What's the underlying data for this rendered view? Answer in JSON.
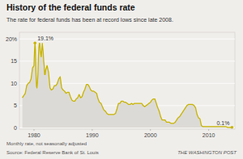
{
  "chart_data": {
    "type": "area",
    "title": "History of the federal funds rate",
    "subtitle": "The rate for federal funds has been at record lows since late 2008.",
    "note": "Monthly rate, not seasonally adjusted",
    "source": "Source: Federal Reserve Bank of St. Louis",
    "credit": "THE WASHINGTON POST",
    "color": "#c8b400",
    "grid": true,
    "xlim": [
      1977.5,
      2014.5
    ],
    "xticks": [
      1980,
      1990,
      2000,
      2010
    ],
    "ylim": [
      -0.3,
      21.5
    ],
    "yticks": [
      0,
      5,
      10,
      15,
      {
        "value": 20,
        "label": "20%"
      }
    ],
    "annotations": [
      {
        "text": "19.1%",
        "x": 1980.17,
        "y": 19.1
      },
      {
        "text": "0.1%",
        "x": 2014.0,
        "y": 0.1
      }
    ],
    "x": [
      1978.0,
      1978.25,
      1978.5,
      1978.75,
      1979.0,
      1979.25,
      1979.5,
      1979.75,
      1980.0,
      1980.08,
      1980.17,
      1980.25,
      1980.33,
      1980.42,
      1980.5,
      1980.58,
      1980.67,
      1980.75,
      1980.83,
      1980.92,
      1981.0,
      1981.08,
      1981.17,
      1981.25,
      1981.33,
      1981.42,
      1981.5,
      1981.58,
      1981.67,
      1981.75,
      1981.83,
      1981.92,
      1982.0,
      1982.25,
      1982.5,
      1982.75,
      1983.0,
      1983.25,
      1983.5,
      1983.75,
      1984.0,
      1984.25,
      1984.5,
      1984.75,
      1985.0,
      1985.25,
      1985.5,
      1985.75,
      1986.0,
      1986.25,
      1986.5,
      1986.75,
      1987.0,
      1987.25,
      1987.5,
      1987.75,
      1988.0,
      1988.25,
      1988.5,
      1988.75,
      1989.0,
      1989.25,
      1989.5,
      1989.75,
      1990.0,
      1990.25,
      1990.5,
      1990.75,
      1991.0,
      1991.25,
      1991.5,
      1991.75,
      1992.0,
      1992.25,
      1992.5,
      1992.75,
      1993.0,
      1993.25,
      1993.5,
      1993.75,
      1994.0,
      1994.25,
      1994.5,
      1994.75,
      1995.0,
      1995.25,
      1995.5,
      1995.75,
      1996.0,
      1996.25,
      1996.5,
      1996.75,
      1997.0,
      1997.25,
      1997.5,
      1997.75,
      1998.0,
      1998.25,
      1998.5,
      1998.75,
      1999.0,
      1999.25,
      1999.5,
      1999.75,
      2000.0,
      2000.25,
      2000.5,
      2000.75,
      2001.0,
      2001.25,
      2001.5,
      2001.75,
      2002.0,
      2002.25,
      2002.5,
      2002.75,
      2003.0,
      2003.25,
      2003.5,
      2003.75,
      2004.0,
      2004.25,
      2004.5,
      2004.75,
      2005.0,
      2005.25,
      2005.5,
      2005.75,
      2006.0,
      2006.25,
      2006.5,
      2006.75,
      2007.0,
      2007.25,
      2007.5,
      2007.75,
      2008.0,
      2008.25,
      2008.5,
      2008.75,
      2009.0,
      2009.25,
      2009.5,
      2009.75,
      2010.0,
      2010.25,
      2010.5,
      2010.75,
      2011.0,
      2011.25,
      2011.5,
      2011.75,
      2012.0,
      2012.25,
      2012.5,
      2012.75,
      2013.0,
      2013.25,
      2013.5,
      2013.75,
      2014.0
    ],
    "values": [
      6.75,
      7.25,
      7.75,
      9.5,
      10.0,
      10.25,
      11.0,
      13.5,
      14.0,
      17.0,
      19.1,
      17.5,
      13.0,
      9.5,
      9.0,
      10.0,
      12.0,
      15.5,
      18.0,
      19.0,
      19.0,
      17.5,
      16.5,
      16.0,
      17.5,
      19.0,
      18.0,
      17.0,
      15.0,
      14.0,
      12.0,
      12.0,
      13.0,
      14.0,
      12.5,
      9.0,
      8.5,
      8.75,
      9.5,
      9.5,
      10.0,
      11.0,
      11.5,
      9.0,
      8.5,
      8.25,
      7.75,
      8.0,
      8.0,
      7.0,
      6.25,
      6.0,
      6.0,
      6.5,
      6.75,
      7.5,
      6.75,
      7.0,
      8.0,
      8.75,
      9.75,
      9.75,
      9.25,
      8.5,
      8.25,
      8.25,
      8.0,
      7.75,
      6.5,
      5.75,
      5.5,
      4.75,
      4.0,
      3.75,
      3.25,
      3.0,
      3.0,
      3.0,
      3.0,
      3.0,
      3.25,
      4.25,
      5.5,
      5.5,
      6.0,
      6.0,
      5.75,
      5.75,
      5.5,
      5.25,
      5.25,
      5.5,
      5.25,
      5.5,
      5.5,
      5.5,
      5.5,
      5.5,
      5.5,
      5.0,
      4.75,
      5.0,
      5.25,
      5.5,
      5.75,
      6.25,
      6.5,
      6.5,
      5.5,
      4.5,
      3.75,
      2.5,
      1.75,
      1.75,
      1.75,
      1.25,
      1.25,
      1.25,
      1.0,
      1.0,
      1.0,
      1.25,
      1.75,
      2.25,
      2.5,
      3.0,
      3.5,
      4.0,
      4.5,
      5.0,
      5.25,
      5.25,
      5.25,
      5.25,
      5.0,
      4.5,
      3.0,
      2.25,
      2.0,
      0.5,
      0.25,
      0.25,
      0.25,
      0.25,
      0.25,
      0.25,
      0.25,
      0.25,
      0.25,
      0.25,
      0.25,
      0.25,
      0.25,
      0.25,
      0.25,
      0.25,
      0.25,
      0.1,
      0.1,
      0.1,
      0.1
    ]
  }
}
